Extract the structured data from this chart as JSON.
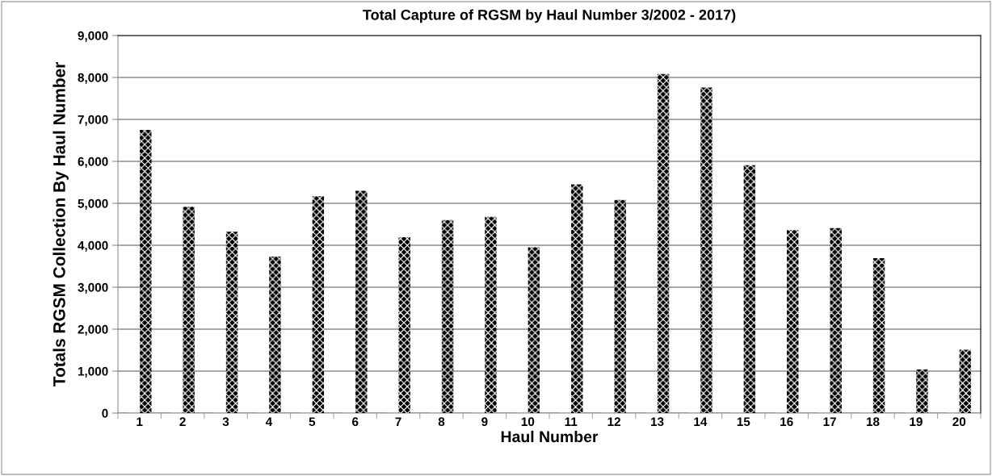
{
  "chart_data": {
    "type": "bar",
    "title": "Total Capture of RGSM by Haul Number 3/2002 - 2017)",
    "xlabel": "Haul Number",
    "ylabel": "Totals RGSM Collection By Haul Number",
    "categories": [
      "1",
      "2",
      "3",
      "4",
      "5",
      "6",
      "7",
      "8",
      "9",
      "10",
      "11",
      "12",
      "13",
      "14",
      "15",
      "16",
      "17",
      "18",
      "19",
      "20"
    ],
    "series": [
      {
        "color": "#8eb4e3",
        "values": [
          0,
          0,
          0,
          0,
          0,
          0,
          0,
          0,
          0,
          0,
          0,
          0,
          0,
          0,
          0,
          0,
          0,
          0,
          0,
          0
        ]
      },
      {
        "color": "#000000",
        "values": [
          6750,
          4920,
          4320,
          3730,
          5170,
          5300,
          4190,
          4600,
          4680,
          3950,
          5450,
          5080,
          8080,
          7760,
          5910,
          4360,
          4410,
          3690,
          1040,
          1510
        ]
      }
    ],
    "ylim": [
      0,
      9000
    ],
    "yticks": [
      {
        "value": 0,
        "label": "0"
      },
      {
        "value": 1000,
        "label": "1,000"
      },
      {
        "value": 2000,
        "label": "2,000"
      },
      {
        "value": 3000,
        "label": "3,000"
      },
      {
        "value": 4000,
        "label": "4,000"
      },
      {
        "value": 5000,
        "label": "5,000"
      },
      {
        "value": 6000,
        "label": "6,000"
      },
      {
        "value": 7000,
        "label": "7,000"
      },
      {
        "value": 8000,
        "label": "8,000"
      },
      {
        "value": 9000,
        "label": "9,000"
      }
    ],
    "grid": "y"
  }
}
